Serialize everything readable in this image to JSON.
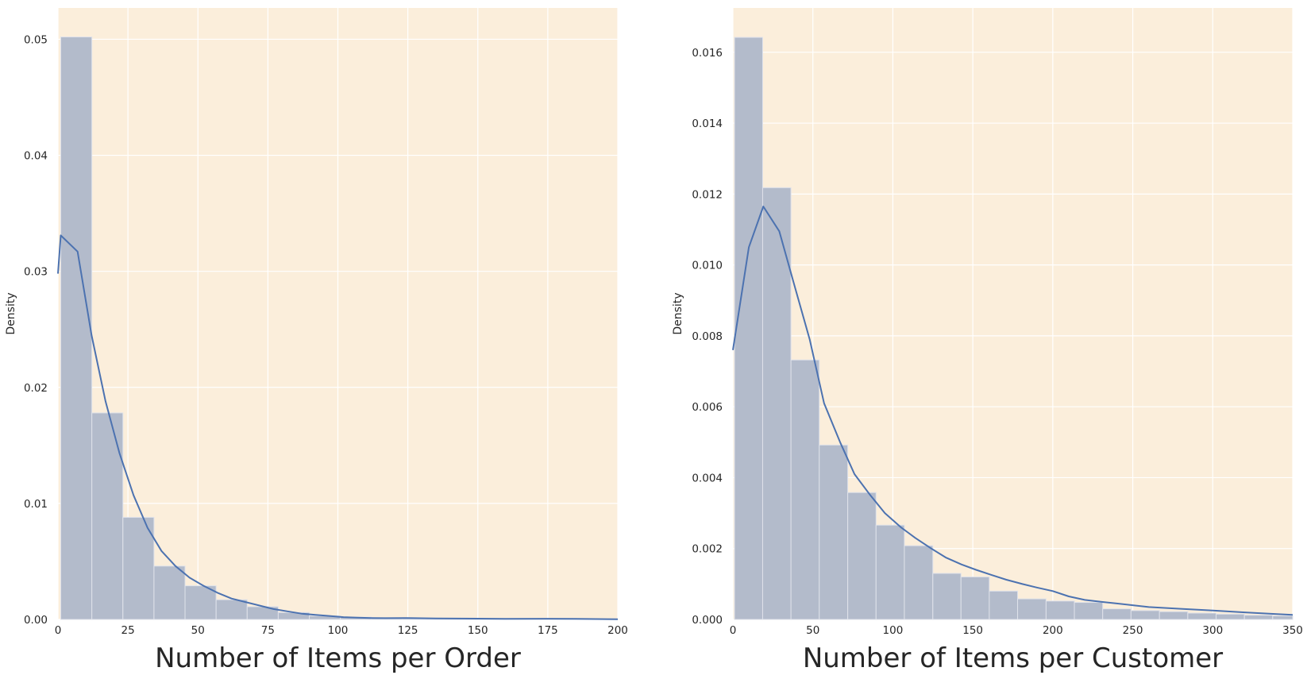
{
  "chart_data": [
    {
      "type": "bar",
      "overlay": "kde-line",
      "xlabel": "Number of Items per Order",
      "ylabel": "Density",
      "xlim": [
        0,
        200
      ],
      "ylim": [
        0,
        0.0527
      ],
      "x_ticks": [
        0,
        25,
        50,
        75,
        100,
        125,
        150,
        175,
        200
      ],
      "x_tick_labels": [
        "0",
        "25",
        "50",
        "75",
        "100",
        "125",
        "150",
        "175",
        "200"
      ],
      "y_ticks": [
        0,
        0.01,
        0.02,
        0.03,
        0.04,
        0.05
      ],
      "y_tick_labels": [
        "0.00",
        "0.01",
        "0.02",
        "0.03",
        "0.04",
        "0.05"
      ],
      "grid": true,
      "bins": [
        {
          "x0": 1,
          "x1": 12.1,
          "value": 0.0502
        },
        {
          "x0": 12.1,
          "x1": 23.2,
          "value": 0.0178
        },
        {
          "x0": 23.2,
          "x1": 34.3,
          "value": 0.0088
        },
        {
          "x0": 34.3,
          "x1": 45.4,
          "value": 0.0046
        },
        {
          "x0": 45.4,
          "x1": 56.5,
          "value": 0.0029
        },
        {
          "x0": 56.5,
          "x1": 67.6,
          "value": 0.0017
        },
        {
          "x0": 67.6,
          "x1": 78.7,
          "value": 0.0011
        },
        {
          "x0": 78.7,
          "x1": 89.8,
          "value": 0.0006
        },
        {
          "x0": 89.8,
          "x1": 100.9,
          "value": 0.0003
        },
        {
          "x0": 100.9,
          "x1": 112.0,
          "value": 0.0002
        },
        {
          "x0": 112.0,
          "x1": 123.1,
          "value": 0.0001
        },
        {
          "x0": 123.1,
          "x1": 134.2,
          "value": 0.0001
        },
        {
          "x0": 134.2,
          "x1": 145.3,
          "value": 5e-05
        },
        {
          "x0": 145.3,
          "x1": 156.4,
          "value": 4e-05
        },
        {
          "x0": 156.4,
          "x1": 167.5,
          "value": 3e-05
        },
        {
          "x0": 167.5,
          "x1": 178.6,
          "value": 3e-05
        },
        {
          "x0": 178.6,
          "x1": 189.7,
          "value": 2e-05
        },
        {
          "x0": 189.7,
          "x1": 200.0,
          "value": 2e-05
        }
      ],
      "kde": {
        "x": [
          0,
          1,
          7,
          12,
          17,
          22,
          27,
          32,
          37,
          42,
          47,
          52,
          57,
          62,
          67,
          72,
          77,
          82,
          87,
          92,
          97,
          102,
          107,
          112,
          117,
          125,
          135,
          150,
          160,
          175,
          185,
          200
        ],
        "y": [
          0.0298,
          0.0331,
          0.0317,
          0.0245,
          0.0188,
          0.0143,
          0.0107,
          0.0079,
          0.0059,
          0.0046,
          0.0036,
          0.0029,
          0.0023,
          0.0018,
          0.0015,
          0.0012,
          0.0009,
          0.0007,
          0.0005,
          0.0004,
          0.0003,
          0.0002,
          0.00015,
          0.00012,
          0.00011,
          0.00012,
          9e-05,
          7e-05,
          5e-05,
          6e-05,
          5e-05,
          2e-05
        ]
      }
    },
    {
      "type": "bar",
      "overlay": "kde-line",
      "xlabel": "Number of Items per Customer",
      "ylabel": "Density",
      "xlim": [
        0,
        350
      ],
      "ylim": [
        0,
        0.01725
      ],
      "x_ticks": [
        0,
        50,
        100,
        150,
        200,
        250,
        300,
        350
      ],
      "x_tick_labels": [
        "0",
        "50",
        "100",
        "150",
        "200",
        "250",
        "300",
        "350"
      ],
      "y_ticks": [
        0,
        0.002,
        0.004,
        0.006,
        0.008,
        0.01,
        0.012,
        0.014,
        0.016
      ],
      "y_tick_labels": [
        "0.000",
        "0.002",
        "0.004",
        "0.006",
        "0.008",
        "0.010",
        "0.012",
        "0.014",
        "0.016"
      ],
      "grid": true,
      "bins": [
        {
          "x0": 1,
          "x1": 18.6,
          "value": 0.01642
        },
        {
          "x0": 18.6,
          "x1": 36.3,
          "value": 0.01218
        },
        {
          "x0": 36.3,
          "x1": 54.0,
          "value": 0.00732
        },
        {
          "x0": 54.0,
          "x1": 71.8,
          "value": 0.00492
        },
        {
          "x0": 71.8,
          "x1": 89.5,
          "value": 0.00358
        },
        {
          "x0": 89.5,
          "x1": 107.2,
          "value": 0.00266
        },
        {
          "x0": 107.2,
          "x1": 125.0,
          "value": 0.00208
        },
        {
          "x0": 125.0,
          "x1": 142.6,
          "value": 0.0013
        },
        {
          "x0": 142.6,
          "x1": 160.3,
          "value": 0.0012
        },
        {
          "x0": 160.3,
          "x1": 178.0,
          "value": 0.0008
        },
        {
          "x0": 178.0,
          "x1": 195.8,
          "value": 0.00058
        },
        {
          "x0": 195.8,
          "x1": 213.5,
          "value": 0.00052
        },
        {
          "x0": 213.5,
          "x1": 231.2,
          "value": 0.00048
        },
        {
          "x0": 231.2,
          "x1": 248.9,
          "value": 0.0003
        },
        {
          "x0": 248.9,
          "x1": 266.7,
          "value": 0.00025
        },
        {
          "x0": 266.7,
          "x1": 284.4,
          "value": 0.00022
        },
        {
          "x0": 284.4,
          "x1": 302.1,
          "value": 0.00018
        },
        {
          "x0": 302.1,
          "x1": 319.8,
          "value": 0.00015
        },
        {
          "x0": 319.8,
          "x1": 337.5,
          "value": 0.00012
        },
        {
          "x0": 337.5,
          "x1": 350.0,
          "value": 0.0001
        }
      ],
      "kde": {
        "x": [
          0,
          10,
          19,
          29,
          38,
          48,
          57,
          67,
          76,
          86,
          95,
          105,
          114,
          124,
          133,
          143,
          152,
          162,
          171,
          181,
          190,
          200,
          210,
          220,
          230,
          240,
          250,
          260,
          280,
          300,
          320,
          340,
          350
        ],
        "y": [
          0.0076,
          0.0105,
          0.01165,
          0.01095,
          0.0095,
          0.0079,
          0.0061,
          0.005,
          0.0041,
          0.0035,
          0.003,
          0.0026,
          0.0023,
          0.002,
          0.00175,
          0.00155,
          0.0014,
          0.00125,
          0.00112,
          0.001,
          0.0009,
          0.0008,
          0.00065,
          0.00055,
          0.0005,
          0.00045,
          0.0004,
          0.00035,
          0.0003,
          0.00025,
          0.0002,
          0.00015,
          0.00013
        ]
      }
    }
  ],
  "colors": {
    "plot_background": "#fbeedb",
    "grid": "#ffffff",
    "bar_fill": "#b3bbcb",
    "bar_edge": "#dfe2ea",
    "kde_line": "#4c72b0",
    "text": "#262626"
  }
}
